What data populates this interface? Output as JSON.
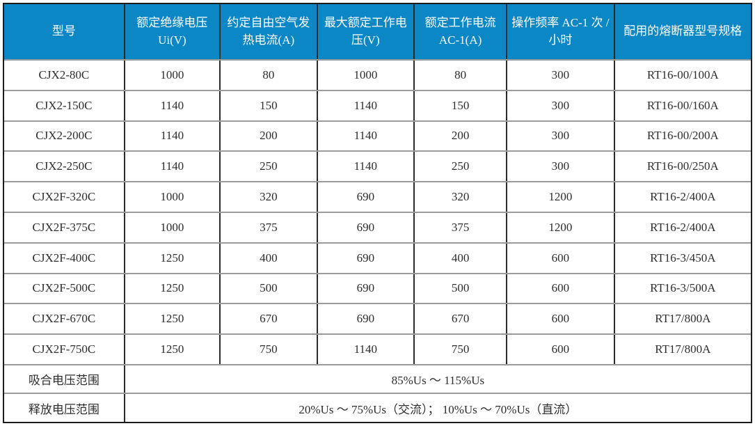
{
  "colors": {
    "header_bg": "#0c87c6",
    "header_text": "#ffffff",
    "body_text": "#2e2e2e",
    "border_dark": "#2a2a2a",
    "border_gray": "#9b9b9b"
  },
  "table": {
    "columns": [
      "型号",
      "额定绝缘电压 Ui(V)",
      "约定自由空气发热电流(A)",
      "最大额定工作电压(V)",
      "额定工作电流 AC-1(A)",
      "操作频率 AC-1 次 / 小时",
      "配用的熔断器型号规格"
    ],
    "rows": [
      [
        "CJX2-80C",
        "1000",
        "80",
        "1000",
        "80",
        "300",
        "RT16-00/100A"
      ],
      [
        "CJX2-150C",
        "1140",
        "150",
        "1140",
        "150",
        "300",
        "RT16-00/160A"
      ],
      [
        "CJX2-200C",
        "1140",
        "200",
        "1140",
        "200",
        "300",
        "RT16-00/200A"
      ],
      [
        "CJX2-250C",
        "1140",
        "250",
        "1140",
        "250",
        "300",
        "RT16-00/250A"
      ],
      [
        "CJX2F-320C",
        "1000",
        "320",
        "690",
        "320",
        "1200",
        "RT16-2/400A"
      ],
      [
        "CJX2F-375C",
        "1000",
        "375",
        "690",
        "375",
        "1200",
        "RT16-2/400A"
      ],
      [
        "CJX2F-400C",
        "1250",
        "400",
        "690",
        "400",
        "600",
        "RT16-3/450A"
      ],
      [
        "CJX2F-500C",
        "1250",
        "500",
        "690",
        "500",
        "600",
        "RT16-3/500A"
      ],
      [
        "CJX2F-670C",
        "1250",
        "670",
        "690",
        "670",
        "600",
        "RT17/800A"
      ],
      [
        "CJX2F-750C",
        "1250",
        "750",
        "1140",
        "750",
        "600",
        "RT17/800A"
      ]
    ],
    "footer": {
      "pickup_label": "吸合电压范围",
      "pickup_value": "85%Us ～ 115%Us",
      "release_label": "释放电压范围",
      "release_value": "20%Us ～ 75%Us（交流）； 10%Us ～ 70%Us（直流）"
    }
  }
}
